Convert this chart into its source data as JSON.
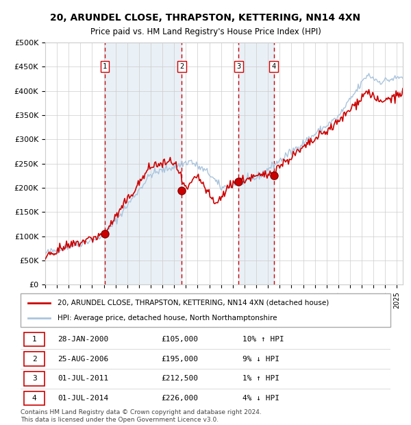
{
  "title": "20, ARUNDEL CLOSE, THRAPSTON, KETTERING, NN14 4XN",
  "subtitle": "Price paid vs. HM Land Registry's House Price Index (HPI)",
  "xlabel": "",
  "ylabel": "",
  "ylim": [
    0,
    500000
  ],
  "yticks": [
    0,
    50000,
    100000,
    150000,
    200000,
    250000,
    300000,
    350000,
    400000,
    450000,
    500000
  ],
  "ytick_labels": [
    "£0",
    "£50K",
    "£100K",
    "£150K",
    "£200K",
    "£250K",
    "£300K",
    "£350K",
    "£400K",
    "£450K",
    "£500K"
  ],
  "hpi_color": "#aac4dd",
  "price_color": "#cc0000",
  "bg_color": "#dce9f5",
  "plot_bg": "#ffffff",
  "sale_dates": [
    2000.07,
    2006.65,
    2011.5,
    2014.5
  ],
  "sale_prices": [
    105000,
    195000,
    212500,
    226000
  ],
  "sale_labels": [
    "1",
    "2",
    "3",
    "4"
  ],
  "vline_color": "#cc0000",
  "marker_color": "#cc0000",
  "legend_price_label": "20, ARUNDEL CLOSE, THRAPSTON, KETTERING, NN14 4XN (detached house)",
  "legend_hpi_label": "HPI: Average price, detached house, North Northamptonshire",
  "table_entries": [
    {
      "num": "1",
      "date": "28-JAN-2000",
      "price": "£105,000",
      "change": "10% ↑ HPI"
    },
    {
      "num": "2",
      "date": "25-AUG-2006",
      "price": "£195,000",
      "change": "9% ↓ HPI"
    },
    {
      "num": "3",
      "date": "01-JUL-2011",
      "price": "£212,500",
      "change": "1% ↑ HPI"
    },
    {
      "num": "4",
      "date": "01-JUL-2014",
      "price": "£226,000",
      "change": "4% ↓ HPI"
    }
  ],
  "footer": "Contains HM Land Registry data © Crown copyright and database right 2024.\nThis data is licensed under the Open Government Licence v3.0.",
  "xlim_start": 1995.0,
  "xlim_end": 2025.5
}
